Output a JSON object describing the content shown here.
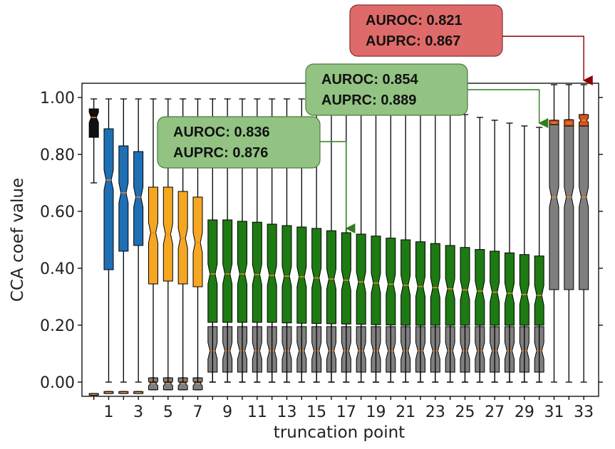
{
  "chart_data": {
    "type": "boxplot",
    "title": "",
    "xlabel": "truncation point",
    "ylabel": "CCA coef value",
    "ylim": [
      -0.05,
      1.05
    ],
    "y_ticks": [
      "0.00",
      "0.20",
      "0.40",
      "0.60",
      "0.80",
      "1.00"
    ],
    "y_tick_values": [
      0.0,
      0.2,
      0.4,
      0.6,
      0.8,
      1.0
    ],
    "x_ticks": [
      "1",
      "3",
      "5",
      "7",
      "9",
      "11",
      "13",
      "15",
      "17",
      "19",
      "21",
      "23",
      "25",
      "27",
      "29",
      "31",
      "33"
    ],
    "x_positions": [
      0,
      1,
      2,
      3,
      4,
      5,
      6,
      7,
      8,
      9,
      10,
      11,
      12,
      13,
      14,
      15,
      16,
      17,
      18,
      19,
      20,
      21,
      22,
      23,
      24,
      25,
      26,
      27,
      28,
      29,
      30,
      31,
      32,
      33
    ],
    "colors": {
      "black": "#111111",
      "blue": "#1f6fb4",
      "orange": "#f5a623",
      "green": "#1e7a12",
      "gray": "#7f7f7f",
      "red": "#d9531e",
      "median_line": "#f08a24"
    },
    "series": [
      {
        "color": "gray",
        "boxes": [
          {
            "x": 0,
            "q1": -0.046,
            "median": -0.043,
            "q3": -0.04,
            "wlo": -0.046,
            "whi": -0.04
          },
          {
            "x": 1,
            "q1": -0.04,
            "median": -0.037,
            "q3": -0.033,
            "wlo": -0.04,
            "whi": -0.033
          },
          {
            "x": 2,
            "q1": -0.04,
            "median": -0.037,
            "q3": -0.033,
            "wlo": -0.04,
            "whi": -0.033
          },
          {
            "x": 3,
            "q1": -0.04,
            "median": -0.037,
            "q3": -0.033,
            "wlo": -0.04,
            "whi": -0.033
          },
          {
            "x": 4,
            "q1": -0.027,
            "median": -0.005,
            "q3": 0.015,
            "wlo": -0.027,
            "whi": 0.015
          },
          {
            "x": 5,
            "q1": -0.027,
            "median": -0.005,
            "q3": 0.015,
            "wlo": -0.027,
            "whi": 0.015
          },
          {
            "x": 6,
            "q1": -0.027,
            "median": -0.005,
            "q3": 0.015,
            "wlo": -0.027,
            "whi": 0.015
          },
          {
            "x": 7,
            "q1": -0.027,
            "median": -0.005,
            "q3": 0.015,
            "wlo": -0.027,
            "whi": 0.015
          },
          {
            "x": 8,
            "q1": 0.035,
            "median": 0.11,
            "q3": 0.195,
            "wlo": 0.0,
            "whi": 0.335
          },
          {
            "x": 9,
            "q1": 0.035,
            "median": 0.11,
            "q3": 0.195,
            "wlo": 0.0,
            "whi": 0.335
          },
          {
            "x": 10,
            "q1": 0.035,
            "median": 0.11,
            "q3": 0.195,
            "wlo": 0.0,
            "whi": 0.335
          },
          {
            "x": 11,
            "q1": 0.035,
            "median": 0.11,
            "q3": 0.195,
            "wlo": 0.0,
            "whi": 0.335
          },
          {
            "x": 12,
            "q1": 0.035,
            "median": 0.11,
            "q3": 0.195,
            "wlo": 0.0,
            "whi": 0.335
          },
          {
            "x": 13,
            "q1": 0.035,
            "median": 0.11,
            "q3": 0.195,
            "wlo": 0.0,
            "whi": 0.335
          },
          {
            "x": 14,
            "q1": 0.035,
            "median": 0.11,
            "q3": 0.195,
            "wlo": 0.0,
            "whi": 0.335
          },
          {
            "x": 15,
            "q1": 0.035,
            "median": 0.11,
            "q3": 0.195,
            "wlo": 0.0,
            "whi": 0.335
          },
          {
            "x": 16,
            "q1": 0.035,
            "median": 0.11,
            "q3": 0.195,
            "wlo": 0.0,
            "whi": 0.335
          },
          {
            "x": 17,
            "q1": 0.035,
            "median": 0.11,
            "q3": 0.195,
            "wlo": 0.0,
            "whi": 0.335
          },
          {
            "x": 18,
            "q1": 0.035,
            "median": 0.11,
            "q3": 0.195,
            "wlo": 0.0,
            "whi": 0.335
          },
          {
            "x": 19,
            "q1": 0.035,
            "median": 0.11,
            "q3": 0.195,
            "wlo": 0.0,
            "whi": 0.335
          },
          {
            "x": 20,
            "q1": 0.035,
            "median": 0.11,
            "q3": 0.195,
            "wlo": 0.0,
            "whi": 0.335
          },
          {
            "x": 21,
            "q1": 0.035,
            "median": 0.11,
            "q3": 0.195,
            "wlo": 0.0,
            "whi": 0.335
          },
          {
            "x": 22,
            "q1": 0.035,
            "median": 0.11,
            "q3": 0.195,
            "wlo": 0.0,
            "whi": 0.335
          },
          {
            "x": 23,
            "q1": 0.035,
            "median": 0.11,
            "q3": 0.195,
            "wlo": 0.0,
            "whi": 0.335
          },
          {
            "x": 24,
            "q1": 0.035,
            "median": 0.11,
            "q3": 0.195,
            "wlo": 0.0,
            "whi": 0.335
          },
          {
            "x": 25,
            "q1": 0.035,
            "median": 0.11,
            "q3": 0.195,
            "wlo": 0.0,
            "whi": 0.335
          },
          {
            "x": 26,
            "q1": 0.035,
            "median": 0.11,
            "q3": 0.195,
            "wlo": 0.0,
            "whi": 0.335
          },
          {
            "x": 27,
            "q1": 0.035,
            "median": 0.11,
            "q3": 0.195,
            "wlo": 0.0,
            "whi": 0.335
          },
          {
            "x": 28,
            "q1": 0.035,
            "median": 0.11,
            "q3": 0.195,
            "wlo": 0.0,
            "whi": 0.335
          },
          {
            "x": 29,
            "q1": 0.035,
            "median": 0.11,
            "q3": 0.195,
            "wlo": 0.0,
            "whi": 0.335
          },
          {
            "x": 30,
            "q1": 0.035,
            "median": 0.11,
            "q3": 0.195,
            "wlo": 0.0,
            "whi": 0.335
          },
          {
            "x": 31,
            "q1": 0.325,
            "median": 0.65,
            "q3": 0.915,
            "wlo": 0.0,
            "whi": 1.045
          },
          {
            "x": 32,
            "q1": 0.325,
            "median": 0.65,
            "q3": 0.9,
            "wlo": 0.0,
            "whi": 1.045
          },
          {
            "x": 33,
            "q1": 0.325,
            "median": 0.65,
            "q3": 0.9,
            "wlo": 0.0,
            "whi": 1.045
          }
        ]
      },
      {
        "color": "black",
        "boxes": [
          {
            "x": 0,
            "q1": 0.86,
            "median": 0.93,
            "q3": 0.96,
            "wlo": 0.7,
            "whi": 0.995
          }
        ]
      },
      {
        "color": "blue",
        "boxes": [
          {
            "x": 1,
            "q1": 0.395,
            "median": 0.71,
            "q3": 0.89,
            "wlo": 0.0,
            "whi": 0.995
          },
          {
            "x": 2,
            "q1": 0.46,
            "median": 0.665,
            "q3": 0.83,
            "wlo": 0.0,
            "whi": 0.995
          },
          {
            "x": 3,
            "q1": 0.48,
            "median": 0.65,
            "q3": 0.81,
            "wlo": 0.0,
            "whi": 0.995
          }
        ]
      },
      {
        "color": "orange",
        "boxes": [
          {
            "x": 4,
            "q1": 0.345,
            "median": 0.525,
            "q3": 0.685,
            "wlo": 0.0,
            "whi": 0.995
          },
          {
            "x": 5,
            "q1": 0.355,
            "median": 0.52,
            "q3": 0.685,
            "wlo": 0.0,
            "whi": 0.995
          },
          {
            "x": 6,
            "q1": 0.345,
            "median": 0.505,
            "q3": 0.67,
            "wlo": 0.0,
            "whi": 0.995
          },
          {
            "x": 7,
            "q1": 0.335,
            "median": 0.49,
            "q3": 0.65,
            "wlo": 0.0,
            "whi": 0.995
          }
        ]
      },
      {
        "color": "green",
        "boxes": [
          {
            "x": 8,
            "q1": 0.21,
            "median": 0.38,
            "q3": 0.57,
            "wlo": 0.0,
            "whi": 0.995
          },
          {
            "x": 9,
            "q1": 0.21,
            "median": 0.38,
            "q3": 0.57,
            "wlo": 0.0,
            "whi": 0.995
          },
          {
            "x": 10,
            "q1": 0.21,
            "median": 0.38,
            "q3": 0.565,
            "wlo": 0.0,
            "whi": 0.995
          },
          {
            "x": 11,
            "q1": 0.21,
            "median": 0.378,
            "q3": 0.562,
            "wlo": 0.0,
            "whi": 0.995
          },
          {
            "x": 12,
            "q1": 0.21,
            "median": 0.375,
            "q3": 0.555,
            "wlo": 0.0,
            "whi": 0.995
          },
          {
            "x": 13,
            "q1": 0.208,
            "median": 0.372,
            "q3": 0.55,
            "wlo": 0.0,
            "whi": 0.995
          },
          {
            "x": 14,
            "q1": 0.207,
            "median": 0.37,
            "q3": 0.545,
            "wlo": 0.0,
            "whi": 0.995
          },
          {
            "x": 15,
            "q1": 0.206,
            "median": 0.366,
            "q3": 0.54,
            "wlo": 0.0,
            "whi": 0.995
          },
          {
            "x": 16,
            "q1": 0.205,
            "median": 0.362,
            "q3": 0.532,
            "wlo": 0.0,
            "whi": 0.995
          },
          {
            "x": 17,
            "q1": 0.204,
            "median": 0.358,
            "q3": 0.525,
            "wlo": 0.0,
            "whi": 0.995
          },
          {
            "x": 18,
            "q1": 0.203,
            "median": 0.352,
            "q3": 0.52,
            "wlo": 0.0,
            "whi": 0.99
          },
          {
            "x": 19,
            "q1": 0.202,
            "median": 0.348,
            "q3": 0.513,
            "wlo": 0.0,
            "whi": 0.985
          },
          {
            "x": 20,
            "q1": 0.201,
            "median": 0.344,
            "q3": 0.506,
            "wlo": 0.0,
            "whi": 0.98
          },
          {
            "x": 21,
            "q1": 0.2,
            "median": 0.34,
            "q3": 0.5,
            "wlo": 0.0,
            "whi": 0.975
          },
          {
            "x": 22,
            "q1": 0.2,
            "median": 0.336,
            "q3": 0.493,
            "wlo": 0.0,
            "whi": 0.97
          },
          {
            "x": 23,
            "q1": 0.2,
            "median": 0.332,
            "q3": 0.487,
            "wlo": 0.0,
            "whi": 0.96
          },
          {
            "x": 24,
            "q1": 0.2,
            "median": 0.328,
            "q3": 0.48,
            "wlo": 0.0,
            "whi": 0.95
          },
          {
            "x": 25,
            "q1": 0.2,
            "median": 0.324,
            "q3": 0.473,
            "wlo": 0.0,
            "whi": 0.94
          },
          {
            "x": 26,
            "q1": 0.2,
            "median": 0.32,
            "q3": 0.466,
            "wlo": 0.0,
            "whi": 0.93
          },
          {
            "x": 27,
            "q1": 0.2,
            "median": 0.316,
            "q3": 0.46,
            "wlo": 0.0,
            "whi": 0.92
          },
          {
            "x": 28,
            "q1": 0.2,
            "median": 0.312,
            "q3": 0.454,
            "wlo": 0.0,
            "whi": 0.91
          },
          {
            "x": 29,
            "q1": 0.2,
            "median": 0.308,
            "q3": 0.448,
            "wlo": 0.0,
            "whi": 0.9
          },
          {
            "x": 30,
            "q1": 0.2,
            "median": 0.305,
            "q3": 0.443,
            "wlo": 0.0,
            "whi": 0.895
          }
        ]
      },
      {
        "color": "red",
        "boxes": [
          {
            "x": 31,
            "q1": 0.905,
            "median": 0.91,
            "q3": 0.92,
            "wlo": 0.905,
            "whi": 0.92
          },
          {
            "x": 32,
            "q1": 0.9,
            "median": 0.91,
            "q3": 0.922,
            "wlo": 0.9,
            "whi": 0.922
          },
          {
            "x": 33,
            "q1": 0.9,
            "median": 0.92,
            "q3": 0.94,
            "wlo": 0.9,
            "whi": 0.94
          }
        ]
      }
    ],
    "annotations": [
      {
        "lines": [
          "AUROC: 0.821",
          "AUPRC: 0.867"
        ],
        "color": "#df6a6a",
        "border": "#8a3030",
        "arrow_color": "#8b0000",
        "target_x": 33,
        "target_y": 1.045
      },
      {
        "lines": [
          "AUROC: 0.854",
          "AUPRC: 0.889"
        ],
        "color": "#93c383",
        "border": "#4c7a3e",
        "arrow_color": "#2f7d1f",
        "target_x": 30,
        "target_y": 0.895
      },
      {
        "lines": [
          "AUROC: 0.836",
          "AUPRC: 0.876"
        ],
        "color": "#93c383",
        "border": "#4c7a3e",
        "arrow_color": "#2f7d1f",
        "target_x": 17,
        "target_y": 0.525
      }
    ]
  }
}
